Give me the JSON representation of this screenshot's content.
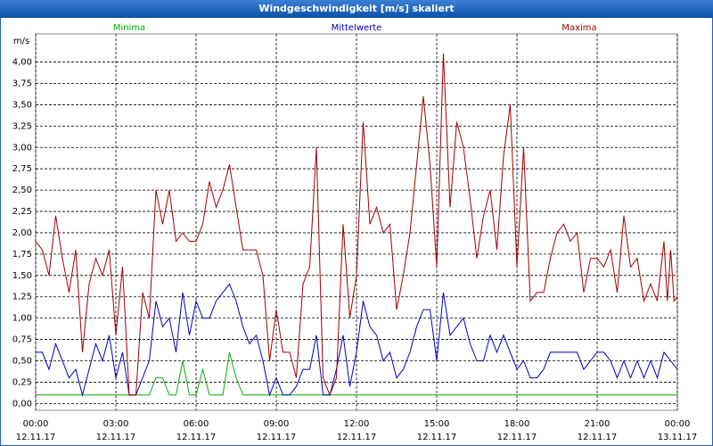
{
  "chart_data": {
    "type": "line",
    "title": "Windgeschwindigkeit [m/s] skaliert",
    "y_unit": "m/s",
    "grid": true,
    "xlim": [
      0,
      24
    ],
    "xticks": [
      {
        "value": 0,
        "label": "00:00",
        "date": "12.11.17"
      },
      {
        "value": 3,
        "label": "03:00",
        "date": "12.11.17"
      },
      {
        "value": 6,
        "label": "06:00",
        "date": "12.11.17"
      },
      {
        "value": 9,
        "label": "09:00",
        "date": "12.11.17"
      },
      {
        "value": 12,
        "label": "12:00",
        "date": "12.11.17"
      },
      {
        "value": 15,
        "label": "15:00",
        "date": "12.11.17"
      },
      {
        "value": 18,
        "label": "18:00",
        "date": "12.11.17"
      },
      {
        "value": 21,
        "label": "21:00",
        "date": "12.11.17"
      },
      {
        "value": 24,
        "label": "00:00",
        "date": "13.11.17"
      }
    ],
    "ylim": [
      -0.08,
      4.33
    ],
    "yticks": [
      {
        "value": 0,
        "label": "0,00"
      },
      {
        "value": 0.25,
        "label": "0,25"
      },
      {
        "value": 0.5,
        "label": "0,50"
      },
      {
        "value": 0.75,
        "label": "0,75"
      },
      {
        "value": 1,
        "label": "1,00"
      },
      {
        "value": 1.25,
        "label": "1,25"
      },
      {
        "value": 1.5,
        "label": "1,50"
      },
      {
        "value": 1.75,
        "label": "1,75"
      },
      {
        "value": 2,
        "label": "2,00"
      },
      {
        "value": 2.25,
        "label": "2,25"
      },
      {
        "value": 2.5,
        "label": "2,50"
      },
      {
        "value": 2.75,
        "label": "2,75"
      },
      {
        "value": 3,
        "label": "3,00"
      },
      {
        "value": 3.25,
        "label": "3,25"
      },
      {
        "value": 3.5,
        "label": "3,50"
      },
      {
        "value": 3.75,
        "label": "3,75"
      },
      {
        "value": 4,
        "label": "4,00"
      }
    ],
    "series": [
      {
        "name": "Minima",
        "color": "#00b000",
        "x": [
          0,
          4.25,
          4.5,
          4.75,
          5,
          5.25,
          5.5,
          5.75,
          6,
          6.25,
          6.5,
          7,
          7.25,
          7.5,
          7.75,
          24
        ],
        "values": [
          0.1,
          0.1,
          0.3,
          0.3,
          0.1,
          0.1,
          0.5,
          0.1,
          0.1,
          0.4,
          0.1,
          0.1,
          0.6,
          0.3,
          0.1,
          0.1
        ]
      },
      {
        "name": "Mittelwerte",
        "color": "#0000c0",
        "x": [
          0,
          0.25,
          0.5,
          0.75,
          1,
          1.25,
          1.5,
          1.75,
          2,
          2.25,
          2.5,
          2.75,
          3,
          3.25,
          3.5,
          3.75,
          4,
          4.25,
          4.5,
          4.75,
          5,
          5.25,
          5.5,
          5.75,
          6,
          6.25,
          6.5,
          6.75,
          7,
          7.25,
          7.5,
          7.75,
          8,
          8.25,
          8.5,
          8.75,
          9,
          9.25,
          9.5,
          9.75,
          10,
          10.25,
          10.5,
          10.75,
          11,
          11.25,
          11.5,
          11.75,
          12,
          12.25,
          12.5,
          12.75,
          13,
          13.25,
          13.5,
          13.75,
          14,
          14.25,
          14.5,
          14.75,
          15,
          15.25,
          15.5,
          15.75,
          16,
          16.25,
          16.5,
          16.75,
          17,
          17.25,
          17.5,
          17.75,
          18,
          18.25,
          18.5,
          18.75,
          19,
          19.25,
          19.5,
          19.75,
          20,
          20.25,
          20.5,
          20.75,
          21,
          21.25,
          21.5,
          21.75,
          22,
          22.25,
          22.5,
          22.75,
          23,
          23.25,
          23.5,
          23.75,
          24
        ],
        "values": [
          0.6,
          0.6,
          0.4,
          0.7,
          0.5,
          0.3,
          0.4,
          0.1,
          0.4,
          0.7,
          0.5,
          0.8,
          0.3,
          0.6,
          0.1,
          0.1,
          0.3,
          0.5,
          1.2,
          0.9,
          1.0,
          0.6,
          1.3,
          0.8,
          1.2,
          1.0,
          1.0,
          1.2,
          1.3,
          1.4,
          1.2,
          0.9,
          0.7,
          0.8,
          0.5,
          0.1,
          0.3,
          0.1,
          0.1,
          0.2,
          0.4,
          0.4,
          0.8,
          0.1,
          0.1,
          0.4,
          0.8,
          0.2,
          0.6,
          1.2,
          0.9,
          0.8,
          0.5,
          0.6,
          0.3,
          0.4,
          0.6,
          0.9,
          1.1,
          1.1,
          0.5,
          1.3,
          0.8,
          0.9,
          1.0,
          0.7,
          0.5,
          0.5,
          0.8,
          0.6,
          0.8,
          0.6,
          0.4,
          0.5,
          0.3,
          0.3,
          0.4,
          0.6,
          0.6,
          0.6,
          0.6,
          0.6,
          0.4,
          0.5,
          0.6,
          0.6,
          0.5,
          0.3,
          0.5,
          0.3,
          0.5,
          0.3,
          0.5,
          0.3,
          0.6,
          0.5,
          0.4
        ]
      },
      {
        "name": "Maxima",
        "color": "#a00000",
        "x": [
          0,
          0.25,
          0.5,
          0.75,
          1,
          1.25,
          1.5,
          1.75,
          2,
          2.25,
          2.5,
          2.75,
          3,
          3.25,
          3.5,
          3.75,
          4,
          4.25,
          4.5,
          4.75,
          5,
          5.25,
          5.5,
          5.75,
          6,
          6.25,
          6.5,
          6.75,
          7,
          7.25,
          7.5,
          7.75,
          8,
          8.25,
          8.5,
          8.75,
          9,
          9.25,
          9.5,
          9.75,
          10,
          10.25,
          10.5,
          10.75,
          11,
          11.25,
          11.5,
          11.75,
          12,
          12.25,
          12.5,
          12.75,
          13,
          13.25,
          13.5,
          13.75,
          14,
          14.25,
          14.5,
          14.75,
          15,
          15.25,
          15.5,
          15.75,
          16,
          16.25,
          16.5,
          16.75,
          17,
          17.25,
          17.5,
          17.75,
          18,
          18.25,
          18.5,
          18.75,
          19,
          19.25,
          19.5,
          19.75,
          20,
          20.25,
          20.5,
          20.75,
          21,
          21.25,
          21.5,
          21.75,
          22,
          22.25,
          22.5,
          22.75,
          23,
          23.25,
          23.5,
          23.625,
          23.75,
          23.875,
          24
        ],
        "values": [
          1.9,
          1.8,
          1.5,
          2.2,
          1.7,
          1.3,
          1.8,
          0.6,
          1.4,
          1.7,
          1.5,
          1.8,
          0.8,
          1.6,
          0.1,
          0.1,
          1.3,
          1.0,
          2.5,
          2.1,
          2.5,
          1.9,
          2.0,
          1.9,
          1.9,
          2.1,
          2.6,
          2.3,
          2.5,
          2.8,
          2.3,
          1.8,
          1.8,
          1.8,
          1.5,
          0.5,
          1.1,
          0.6,
          0.6,
          0.3,
          1.4,
          1.6,
          3.0,
          0.3,
          0.1,
          0.3,
          2.1,
          1.0,
          1.5,
          3.3,
          2.1,
          2.3,
          2.0,
          2.1,
          1.1,
          1.5,
          2.0,
          2.8,
          3.6,
          2.8,
          1.6,
          4.1,
          2.3,
          3.3,
          3.0,
          2.4,
          1.7,
          2.2,
          2.5,
          1.8,
          2.9,
          3.5,
          1.6,
          3.0,
          1.2,
          1.3,
          1.3,
          1.7,
          2.0,
          2.1,
          1.9,
          2.0,
          1.3,
          1.7,
          1.7,
          1.6,
          1.8,
          1.3,
          2.2,
          1.6,
          1.7,
          1.2,
          1.4,
          1.2,
          1.9,
          1.2,
          1.8,
          1.2,
          1.25
        ]
      }
    ]
  }
}
